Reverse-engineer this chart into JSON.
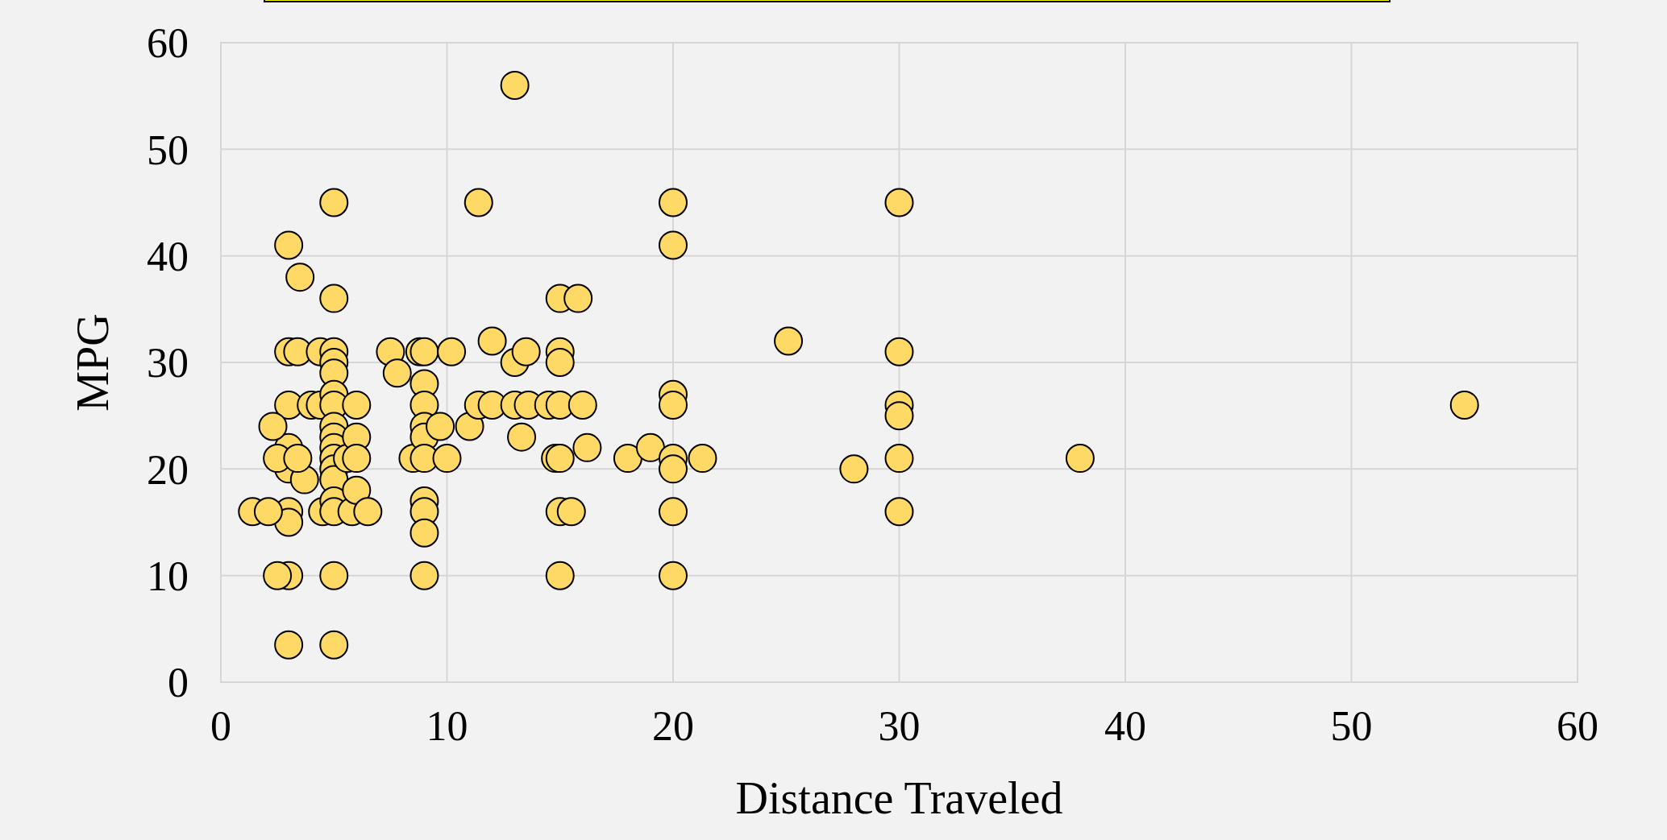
{
  "chart_data": {
    "type": "scatter",
    "xlabel": "Distance Traveled",
    "ylabel": "MPG",
    "xlim": [
      0,
      60
    ],
    "ylim": [
      0,
      60
    ],
    "xticks": [
      0,
      10,
      20,
      30,
      40,
      50,
      60
    ],
    "yticks": [
      0,
      10,
      20,
      30,
      40,
      50,
      60
    ],
    "grid": true,
    "marker": "circle",
    "series": [
      {
        "color": "#ffd966",
        "x": [
          3,
          3,
          3,
          3,
          3,
          3,
          3,
          3,
          3,
          2.5,
          2.5,
          2.3,
          1.4,
          2.1,
          3.5,
          3.7,
          3.4,
          3.4,
          4,
          4.4,
          4.4,
          4.5,
          5,
          5,
          5,
          5,
          5,
          5,
          5,
          5,
          5,
          5,
          5,
          5,
          5,
          5,
          5,
          5,
          5,
          5.6,
          5.8,
          6,
          6,
          6,
          6,
          6.5,
          7.5,
          7.8,
          8.5,
          8.8,
          9,
          9,
          9,
          9,
          9,
          9,
          9,
          9,
          9,
          9,
          9.7,
          10,
          10.2,
          11,
          11.4,
          11.4,
          12,
          12,
          13,
          13,
          13,
          13.3,
          13.5,
          13.6,
          14.5,
          14.8,
          15,
          15,
          15,
          15,
          15,
          15,
          15,
          15.5,
          15.8,
          16,
          16.2,
          18,
          19,
          20,
          20,
          20,
          20,
          20,
          20,
          20,
          20,
          21.3,
          25.1,
          28,
          30,
          30,
          30,
          30,
          30,
          30,
          38,
          55
        ],
        "values": [
          41,
          31,
          26,
          22,
          20,
          16,
          15,
          10,
          3.5,
          21,
          10,
          24,
          16,
          16,
          38,
          19,
          31,
          21,
          26,
          26,
          31,
          16,
          45,
          36,
          31,
          30,
          29,
          27,
          26,
          24,
          23,
          22,
          21,
          20,
          19,
          17,
          16,
          10,
          3.5,
          21,
          16,
          26,
          23,
          21,
          18,
          16,
          31,
          29,
          21,
          31,
          31,
          28,
          26,
          24,
          23,
          21,
          17,
          16,
          14,
          10,
          24,
          21,
          31,
          24,
          26,
          45,
          32,
          26,
          56,
          30,
          26,
          23,
          31,
          26,
          26,
          21,
          36,
          31,
          30,
          26,
          21,
          16,
          10,
          16,
          36,
          26,
          22,
          21,
          22,
          45,
          41,
          27,
          26,
          21,
          20,
          16,
          10,
          21,
          32,
          20,
          45,
          31,
          26,
          25,
          21,
          16,
          21,
          26
        ]
      }
    ]
  }
}
